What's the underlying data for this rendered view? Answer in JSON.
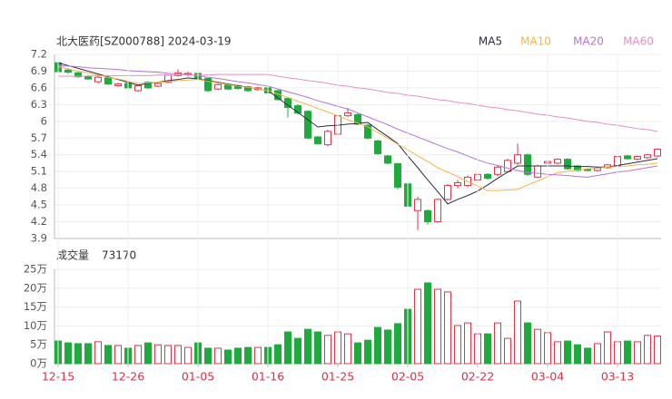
{
  "chart_data": [
    {
      "type": "candlestick",
      "title": "北大医药[SZ000788] 2024-03-19",
      "up_color": "#e0364a",
      "down_color": "#1faa3d",
      "ylim": [
        3.9,
        7.2
      ],
      "yticks": [
        7.2,
        6.9,
        6.6,
        6.3,
        6,
        5.7,
        5.4,
        5.1,
        4.8,
        4.5,
        4.2,
        3.9
      ],
      "grid": true,
      "open": [
        7.05,
        6.92,
        6.87,
        6.81,
        6.71,
        6.78,
        6.64,
        6.68,
        6.55,
        6.7,
        6.63,
        6.7,
        6.82,
        6.84,
        6.86,
        6.77,
        6.58,
        6.66,
        6.64,
        6.62,
        6.57,
        6.6,
        6.55,
        6.41,
        6.28,
        6.18,
        5.72,
        5.58,
        5.77,
        6.1,
        6.12,
        5.93,
        5.65,
        5.38,
        5.24,
        4.88,
        4.4,
        4.4,
        4.2,
        4.6,
        4.85,
        4.85,
        4.95,
        5.05,
        5.05,
        5.1,
        5.25,
        5.4,
        5.0,
        5.25,
        5.25,
        5.32,
        5.2,
        5.14,
        5.12,
        5.17,
        5.2,
        5.38,
        5.32,
        5.35,
        5.38
      ],
      "high": [
        7.06,
        6.95,
        6.89,
        6.83,
        6.82,
        6.8,
        6.69,
        6.7,
        6.66,
        6.72,
        6.7,
        6.84,
        6.93,
        6.89,
        6.88,
        6.78,
        6.68,
        6.68,
        6.66,
        6.64,
        6.62,
        6.62,
        6.57,
        6.43,
        6.31,
        6.2,
        5.74,
        5.85,
        6.12,
        6.24,
        6.16,
        5.95,
        5.67,
        5.4,
        5.26,
        4.9,
        4.65,
        4.42,
        4.62,
        4.88,
        4.95,
        5.03,
        5.08,
        5.07,
        5.2,
        5.33,
        5.6,
        5.42,
        5.22,
        5.3,
        5.34,
        5.34,
        5.22,
        5.16,
        5.18,
        5.24,
        5.39,
        5.4,
        5.39,
        5.42,
        5.52
      ],
      "low": [
        6.87,
        6.85,
        6.78,
        6.74,
        6.68,
        6.65,
        6.62,
        6.58,
        6.53,
        6.58,
        6.61,
        6.68,
        6.8,
        6.81,
        6.75,
        6.53,
        6.56,
        6.56,
        6.57,
        6.53,
        6.55,
        6.49,
        6.37,
        6.07,
        6.12,
        5.68,
        5.58,
        5.55,
        5.75,
        6.08,
        5.93,
        5.68,
        5.4,
        5.23,
        4.78,
        4.45,
        4.05,
        4.15,
        4.18,
        4.58,
        4.8,
        4.82,
        4.92,
        4.95,
        5.02,
        5.08,
        5.22,
        5.02,
        4.98,
        5.22,
        5.23,
        5.13,
        5.1,
        5.1,
        5.1,
        5.15,
        5.18,
        5.31,
        5.3,
        5.33,
        5.36
      ],
      "close": [
        6.89,
        6.88,
        6.8,
        6.76,
        6.79,
        6.67,
        6.67,
        6.6,
        6.64,
        6.6,
        6.68,
        6.83,
        6.87,
        6.86,
        6.77,
        6.55,
        6.66,
        6.58,
        6.59,
        6.55,
        6.6,
        6.51,
        6.39,
        6.25,
        6.15,
        5.7,
        5.6,
        5.82,
        6.1,
        6.15,
        5.95,
        5.7,
        5.42,
        5.25,
        4.82,
        4.48,
        4.6,
        4.2,
        4.6,
        4.85,
        4.9,
        5.0,
        5.05,
        4.98,
        5.18,
        5.3,
        5.4,
        5.05,
        5.2,
        5.28,
        5.32,
        5.15,
        5.12,
        5.12,
        5.16,
        5.22,
        5.37,
        5.33,
        5.37,
        5.4,
        5.5
      ],
      "series": [
        {
          "name": "MA5",
          "color": "#2b2d42",
          "values": [
            7.05,
            7.0,
            6.95,
            6.9,
            6.85,
            6.8,
            6.75,
            6.7,
            6.65,
            6.68,
            6.7,
            6.73,
            6.75,
            6.78,
            6.76,
            6.73,
            6.7,
            6.67,
            6.64,
            6.61,
            6.58,
            6.55,
            6.42,
            6.29,
            6.16,
            6.03,
            5.9,
            5.92,
            5.93,
            5.95,
            5.96,
            5.98,
            5.85,
            5.73,
            5.6,
            5.38,
            5.17,
            4.95,
            4.74,
            4.52,
            4.6,
            4.67,
            4.75,
            4.86,
            4.98,
            5.09,
            5.2,
            5.2,
            5.2,
            5.2,
            5.2,
            5.2,
            5.19,
            5.19,
            5.18,
            5.18,
            5.21,
            5.24,
            5.27,
            5.3,
            5.33
          ]
        },
        {
          "name": "MA10",
          "color": "#f5b54a",
          "values": [
            6.98,
            6.94,
            6.9,
            6.87,
            6.83,
            6.79,
            6.76,
            6.72,
            6.68,
            6.69,
            6.7,
            6.71,
            6.73,
            6.74,
            6.75,
            6.72,
            6.69,
            6.66,
            6.63,
            6.61,
            6.58,
            6.55,
            6.49,
            6.43,
            6.36,
            6.3,
            6.23,
            6.17,
            6.1,
            6.03,
            5.97,
            5.9,
            5.8,
            5.7,
            5.59,
            5.49,
            5.38,
            5.28,
            5.17,
            5.09,
            5.01,
            4.92,
            4.84,
            4.76,
            4.76,
            4.77,
            4.78,
            4.86,
            4.93,
            5.01,
            5.08,
            5.1,
            5.13,
            5.15,
            5.16,
            5.18,
            5.19,
            5.2,
            5.22,
            5.23,
            5.25
          ]
        },
        {
          "name": "MA20",
          "color": "#b574d6",
          "values": [
            7.0,
            6.99,
            6.98,
            6.96,
            6.95,
            6.94,
            6.93,
            6.91,
            6.9,
            6.89,
            6.88,
            6.86,
            6.85,
            6.84,
            6.82,
            6.79,
            6.77,
            6.74,
            6.71,
            6.69,
            6.66,
            6.63,
            6.58,
            6.53,
            6.48,
            6.43,
            6.37,
            6.32,
            6.27,
            6.22,
            6.15,
            6.08,
            6.01,
            5.94,
            5.86,
            5.79,
            5.72,
            5.65,
            5.58,
            5.51,
            5.45,
            5.38,
            5.31,
            5.25,
            5.21,
            5.16,
            5.12,
            5.08,
            5.07,
            5.05,
            5.04,
            5.03,
            5.01,
            5.0,
            5.03,
            5.06,
            5.09,
            5.11,
            5.14,
            5.17,
            5.2
          ]
        },
        {
          "name": "MA60",
          "color": "#e98fc0",
          "values": [
            6.81,
            6.81,
            6.81,
            6.81,
            6.82,
            6.82,
            6.82,
            6.82,
            6.82,
            6.82,
            6.83,
            6.83,
            6.83,
            6.83,
            6.83,
            6.83,
            6.84,
            6.84,
            6.84,
            6.84,
            6.84,
            6.84,
            6.81,
            6.78,
            6.76,
            6.73,
            6.71,
            6.68,
            6.65,
            6.63,
            6.6,
            6.58,
            6.55,
            6.52,
            6.5,
            6.47,
            6.45,
            6.42,
            6.39,
            6.37,
            6.34,
            6.32,
            6.29,
            6.26,
            6.24,
            6.21,
            6.19,
            6.16,
            6.13,
            6.11,
            6.08,
            6.06,
            6.03,
            6.0,
            5.98,
            5.95,
            5.93,
            5.9,
            5.87,
            5.85,
            5.82
          ]
        }
      ]
    },
    {
      "type": "bar",
      "title": "成交量",
      "categories": [
        "12-15",
        null,
        null,
        null,
        null,
        null,
        null,
        "12-26",
        null,
        null,
        null,
        null,
        null,
        null,
        "01-05",
        null,
        null,
        null,
        null,
        null,
        null,
        "01-16",
        null,
        null,
        null,
        null,
        null,
        null,
        "01-25",
        null,
        null,
        null,
        null,
        null,
        null,
        "02-05",
        null,
        null,
        null,
        null,
        null,
        null,
        "02-22",
        null,
        null,
        null,
        null,
        null,
        null,
        "03-04",
        null,
        null,
        null,
        null,
        null,
        null,
        "03-13",
        null,
        null,
        null,
        null
      ],
      "values": [
        60000,
        55000,
        53000,
        53000,
        58000,
        48000,
        48000,
        41000,
        48000,
        55000,
        50000,
        48000,
        48000,
        43000,
        55000,
        41000,
        41000,
        36000,
        41000,
        43000,
        43000,
        43000,
        50000,
        84000,
        67000,
        91000,
        84000,
        75000,
        84000,
        79000,
        55000,
        62000,
        96000,
        89000,
        106000,
        144000,
        197000,
        214000,
        197000,
        190000,
        101000,
        108000,
        79000,
        79000,
        108000,
        67000,
        166000,
        108000,
        91000,
        82000,
        58000,
        60000,
        50000,
        41000,
        53000,
        84000,
        58000,
        60000,
        58000,
        75000,
        73170
      ],
      "ylim": [
        0,
        250000
      ],
      "yticks": [
        {
          "value": 250000,
          "label": "25万"
        },
        {
          "value": 200000,
          "label": "20万"
        },
        {
          "value": 150000,
          "label": "15万"
        },
        {
          "value": 100000,
          "label": "10万"
        },
        {
          "value": 50000,
          "label": "5万"
        },
        {
          "value": 0,
          "label": "0万"
        }
      ],
      "grid": true
    }
  ]
}
